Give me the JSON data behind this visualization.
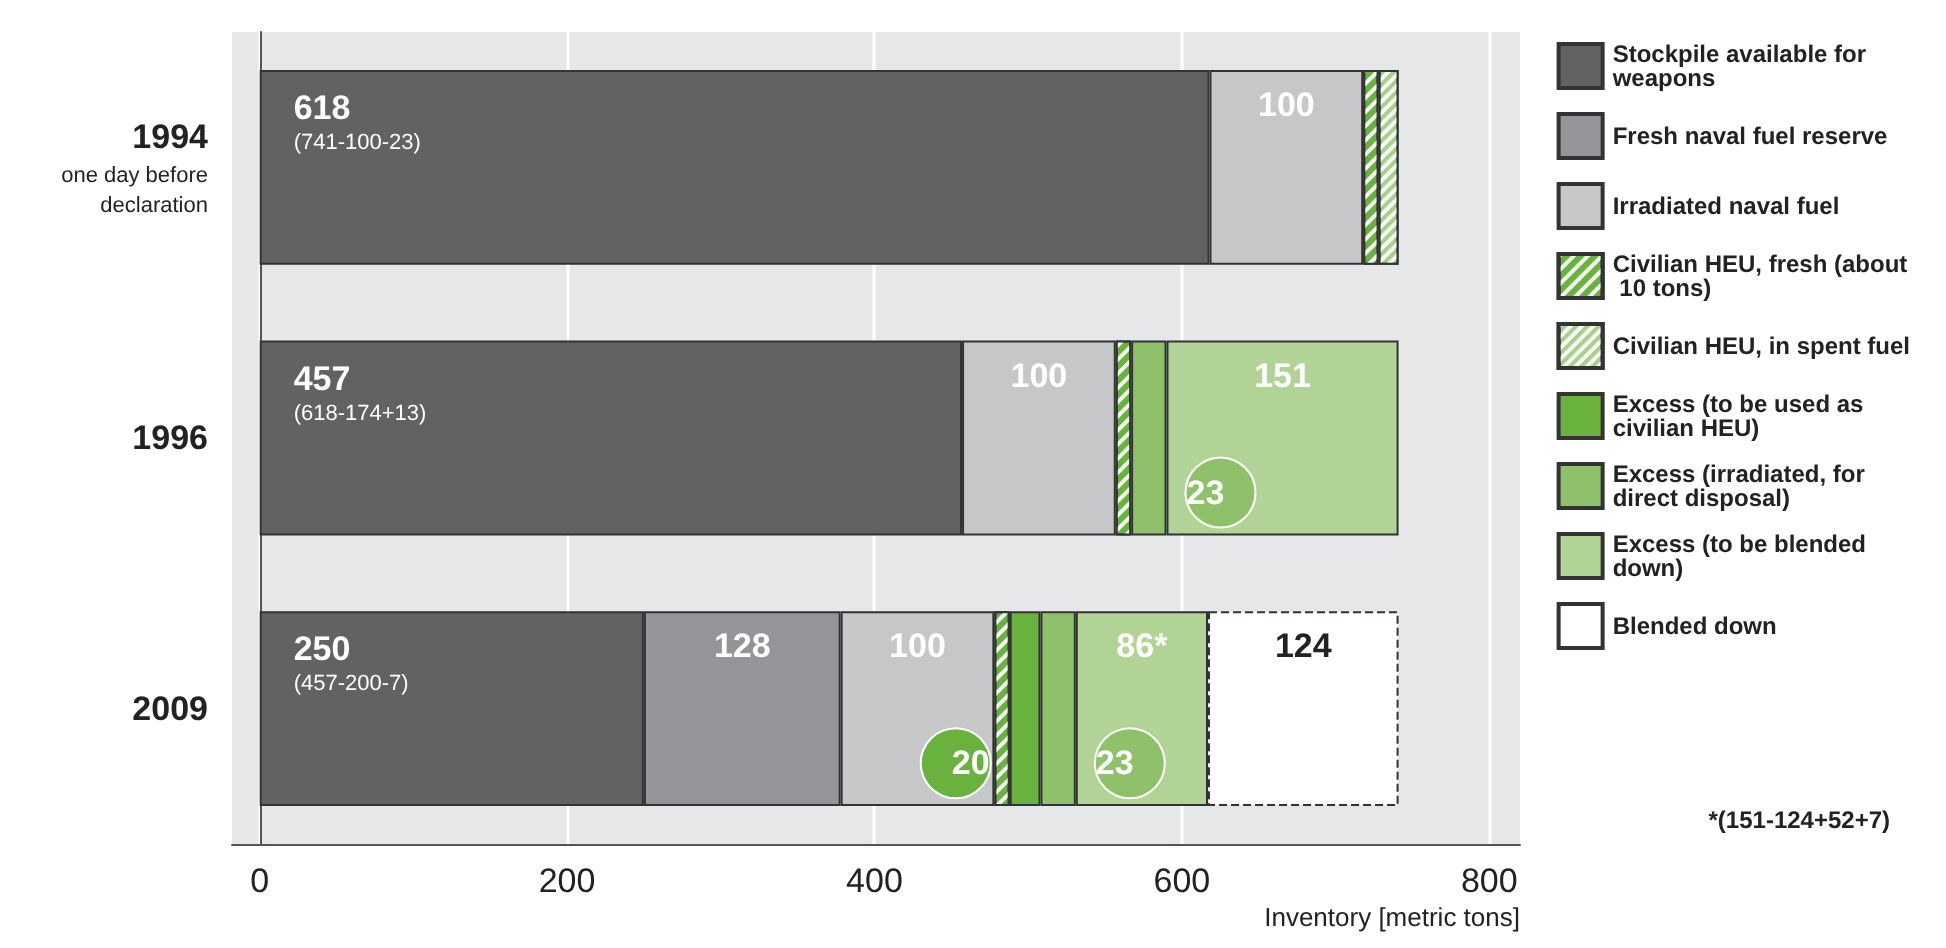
{
  "chart_data": {
    "type": "bar",
    "orientation": "horizontal",
    "stacked": true,
    "categories": [
      "1994\none day before\ndeclaration",
      "1996",
      "2009"
    ],
    "xlabel": "Inventory [metric tons]",
    "xlim": [
      -18,
      820
    ],
    "xticks": [
      0,
      200,
      400,
      600,
      800
    ],
    "grid": "x",
    "legend": "right",
    "series": [
      {
        "name": "Stockpile available for weapons",
        "color": "#626265",
        "values": [
          618,
          457,
          250
        ],
        "value_labels": [
          "618\n(741-100-23)",
          "457\n(618-174+13)",
          "250\n(457-200-7)"
        ]
      },
      {
        "name": "Fresh naval fuel reserve",
        "color": "#949599",
        "values": [
          null,
          null,
          128
        ],
        "value_labels": [
          null,
          null,
          "128"
        ]
      },
      {
        "name": "Irradiated naval fuel",
        "color": "#c6c7c9",
        "values": [
          100,
          100,
          100
        ],
        "value_labels": [
          "100",
          "100",
          "100"
        ]
      },
      {
        "name": "Civilian HEU, fresh (about 10 tons)",
        "color": "#6ab23e",
        "values": [
          10,
          10,
          10
        ]
      },
      {
        "name": "Civilian HEU, in spent fuel",
        "color": "#a8d08d",
        "values": [
          13,
          null,
          null
        ]
      },
      {
        "name": "Excess (to be used as civilian HEU)",
        "color": "#6ab23e",
        "values": [
          null,
          null,
          20
        ],
        "value_labels": [
          null,
          null,
          "20"
        ]
      },
      {
        "name": "Excess (irradiated, for direct disposal)",
        "color": "#8fc06a",
        "values": [
          null,
          23,
          23
        ],
        "value_labels": [
          null,
          "23",
          "23"
        ]
      },
      {
        "name": "Excess (to be blended down)",
        "color": "#b1d496",
        "values": [
          null,
          151,
          86
        ],
        "value_labels": [
          null,
          "151",
          "86*"
        ]
      },
      {
        "name": "Blended down",
        "color": "#ffffff",
        "values": [
          null,
          null,
          124
        ],
        "value_labels": [
          null,
          null,
          "124"
        ]
      }
    ],
    "annotations": [
      "*(151-124+52+7)"
    ]
  }
}
